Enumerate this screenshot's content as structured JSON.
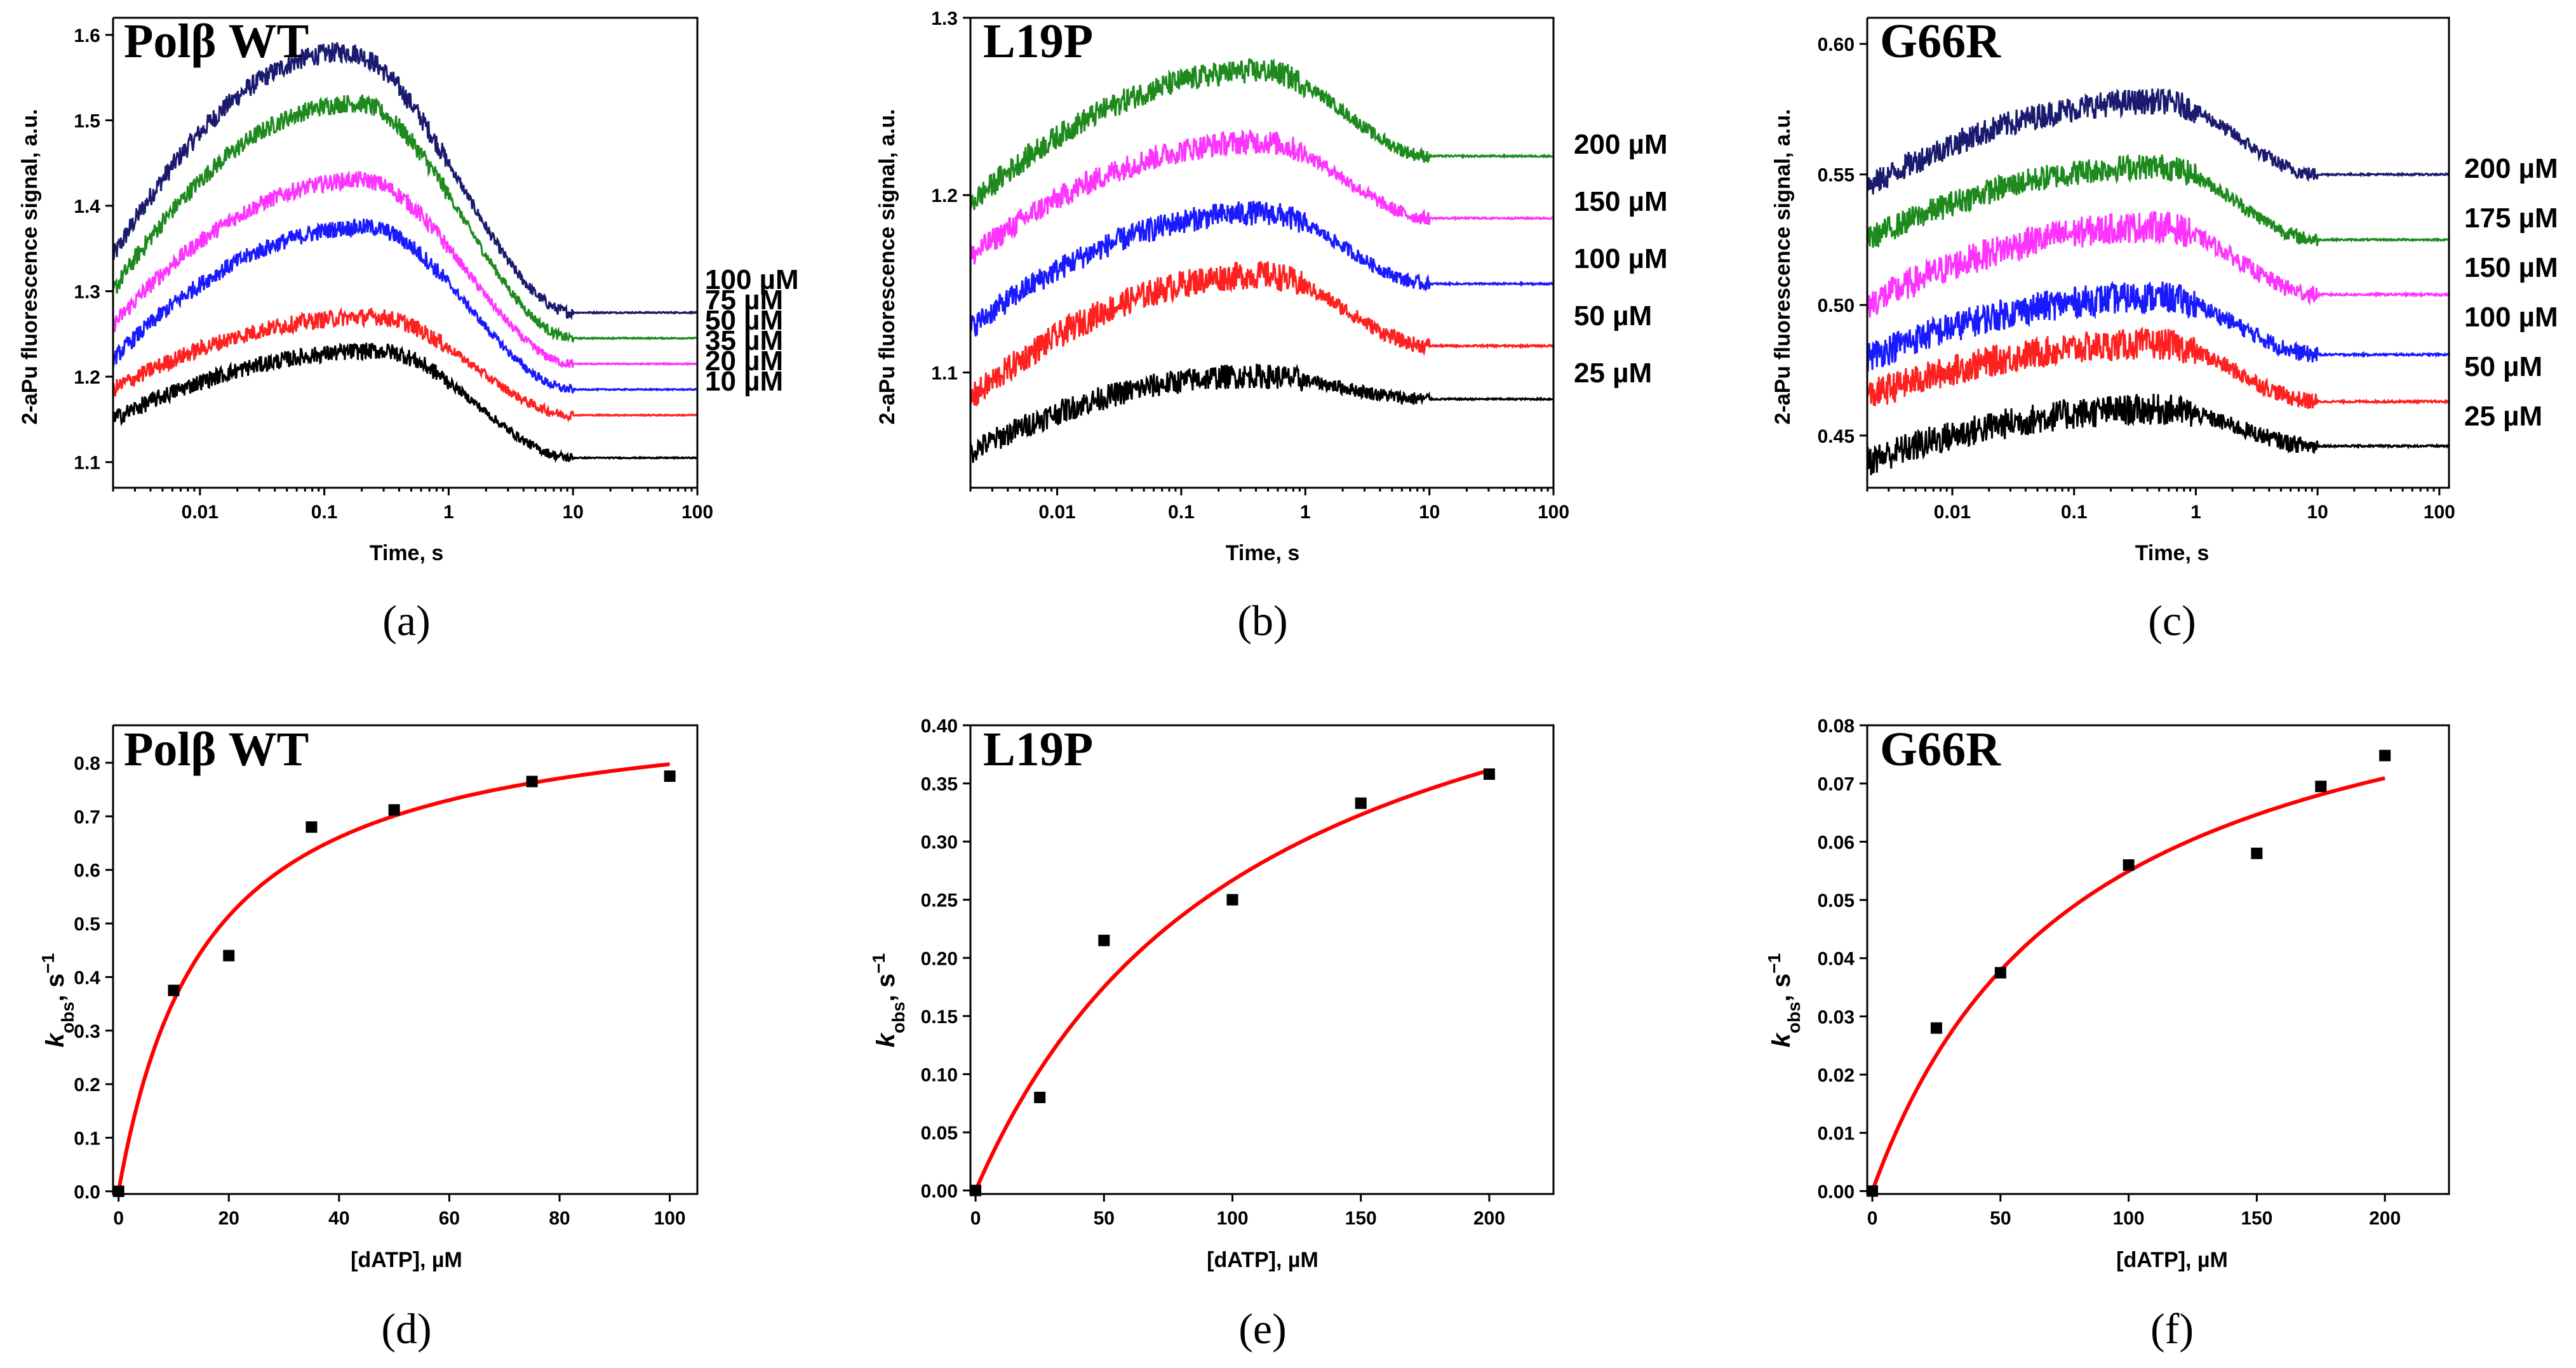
{
  "chart_data": [
    {
      "id": "a",
      "type": "line",
      "caption": "(a)",
      "title": "Polβ WT",
      "xlabel": "Time, s",
      "ylabel": "2-aPu fluorescence signal, a.u.",
      "x_scale": "log",
      "xlim": [
        0.002,
        100
      ],
      "ylim": [
        1.07,
        1.62
      ],
      "x_ticks": [
        0.01,
        0.1,
        1,
        10,
        100
      ],
      "x_tick_labels": [
        "0.01",
        "0.1",
        "1",
        "10",
        "100"
      ],
      "y_ticks": [
        1.1,
        1.2,
        1.3,
        1.4,
        1.5,
        1.6
      ],
      "y_tick_labels": [
        "1.1",
        "1.2",
        "1.3",
        "1.4",
        "1.5",
        "1.6"
      ],
      "series": [
        {
          "name": "100 µM",
          "color": "#1a1a6e",
          "start": 1.34,
          "peak": 1.58,
          "peak_time": 0.15,
          "end": 1.275,
          "noise": 0.012
        },
        {
          "name": "75 µM",
          "color": "#1e8a1e",
          "start": 1.3,
          "peak": 1.52,
          "peak_time": 0.18,
          "end": 1.245,
          "noise": 0.011
        },
        {
          "name": "50 µM",
          "color": "#ff33ff",
          "start": 1.26,
          "peak": 1.43,
          "peak_time": 0.2,
          "end": 1.215,
          "noise": 0.01
        },
        {
          "name": "35 µM",
          "color": "#1a1aff",
          "start": 1.22,
          "peak": 1.375,
          "peak_time": 0.22,
          "end": 1.185,
          "noise": 0.01
        },
        {
          "name": "20 µM",
          "color": "#ff2020",
          "start": 1.185,
          "peak": 1.27,
          "peak_time": 0.25,
          "end": 1.155,
          "noise": 0.01
        },
        {
          "name": "10 µM",
          "color": "#000000",
          "start": 1.15,
          "peak": 1.23,
          "peak_time": 0.28,
          "end": 1.105,
          "noise": 0.01
        }
      ]
    },
    {
      "id": "b",
      "type": "line",
      "caption": "(b)",
      "title": "L19P",
      "xlabel": "Time, s",
      "ylabel": "2-aPu fluorescence signal, a.u.",
      "x_scale": "log",
      "xlim": [
        0.002,
        100
      ],
      "ylim": [
        1.035,
        1.3
      ],
      "x_ticks": [
        0.01,
        0.1,
        1,
        10,
        100
      ],
      "x_tick_labels": [
        "0.01",
        "0.1",
        "1",
        "10",
        "100"
      ],
      "y_ticks": [
        1.1,
        1.2,
        1.3
      ],
      "y_tick_labels": [
        "1.1",
        "1.2",
        "1.3"
      ],
      "series": [
        {
          "name": "200 µM",
          "color": "#1e8a1e",
          "start": 1.195,
          "peak": 1.27,
          "peak_time": 0.45,
          "end": 1.222,
          "noise": 0.007
        },
        {
          "name": "150 µM",
          "color": "#ff33ff",
          "start": 1.165,
          "peak": 1.23,
          "peak_time": 0.45,
          "end": 1.187,
          "noise": 0.007
        },
        {
          "name": "100 µM",
          "color": "#1a1aff",
          "start": 1.125,
          "peak": 1.19,
          "peak_time": 0.45,
          "end": 1.15,
          "noise": 0.007
        },
        {
          "name": "50 µM",
          "color": "#ff2020",
          "start": 1.085,
          "peak": 1.155,
          "peak_time": 0.45,
          "end": 1.115,
          "noise": 0.008
        },
        {
          "name": "25 µM",
          "color": "#000000",
          "start": 1.055,
          "peak": 1.098,
          "peak_time": 0.4,
          "end": 1.085,
          "noise": 0.007
        }
      ]
    },
    {
      "id": "c",
      "type": "line",
      "caption": "(c)",
      "title": "G66R",
      "xlabel": "Time, s",
      "ylabel": "2-aPu fluorescence signal, a.u.",
      "x_scale": "log",
      "xlim": [
        0.002,
        120
      ],
      "ylim": [
        0.43,
        0.61
      ],
      "x_ticks": [
        0.01,
        0.1,
        1,
        10,
        100
      ],
      "x_tick_labels": [
        "0.01",
        "0.1",
        "1",
        "10",
        "100"
      ],
      "y_ticks": [
        0.45,
        0.5,
        0.55,
        0.6
      ],
      "y_tick_labels": [
        "0.45",
        "0.50",
        "0.55",
        "0.60"
      ],
      "series": [
        {
          "name": "200 µM",
          "color": "#1a1a6e",
          "start": 0.545,
          "peak": 0.578,
          "peak_time": 0.5,
          "end": 0.55,
          "noise": 0.005
        },
        {
          "name": "175 µM",
          "color": "#1e8a1e",
          "start": 0.525,
          "peak": 0.553,
          "peak_time": 0.5,
          "end": 0.525,
          "noise": 0.005
        },
        {
          "name": "150 µM",
          "color": "#ff33ff",
          "start": 0.5,
          "peak": 0.53,
          "peak_time": 0.5,
          "end": 0.504,
          "noise": 0.006
        },
        {
          "name": "100 µM",
          "color": "#1a1aff",
          "start": 0.48,
          "peak": 0.503,
          "peak_time": 0.5,
          "end": 0.481,
          "noise": 0.006
        },
        {
          "name": "50 µM",
          "color": "#ff2020",
          "start": 0.465,
          "peak": 0.485,
          "peak_time": 0.5,
          "end": 0.463,
          "noise": 0.006
        },
        {
          "name": "25 µM",
          "color": "#000000",
          "start": 0.44,
          "peak": 0.46,
          "peak_time": 0.5,
          "end": 0.446,
          "noise": 0.006
        }
      ]
    },
    {
      "id": "d",
      "type": "scatter",
      "caption": "(d)",
      "title": "Polβ WT",
      "xlabel": "[dATP], µM",
      "ylabel_main": "k",
      "ylabel_sub": "obs",
      "ylabel_unit": ", s",
      "ylabel_sup": "−1",
      "xlim": [
        -1,
        105
      ],
      "ylim": [
        -0.005,
        0.87
      ],
      "x_ticks": [
        0,
        20,
        40,
        60,
        80,
        100
      ],
      "x_tick_labels": [
        "0",
        "20",
        "40",
        "60",
        "80",
        "100"
      ],
      "y_ticks": [
        0,
        0.1,
        0.2,
        0.3,
        0.4,
        0.5,
        0.6,
        0.7,
        0.8
      ],
      "y_tick_labels": [
        "0.0",
        "0.1",
        "0.2",
        "0.3",
        "0.4",
        "0.5",
        "0.6",
        "0.7",
        "0.8"
      ],
      "points_x": [
        0,
        10,
        20,
        35,
        50,
        75,
        100
      ],
      "points_y": [
        0,
        0.375,
        0.44,
        0.68,
        0.712,
        0.765,
        0.775
      ],
      "fit": {
        "color": "#ff0000",
        "kmax": 0.925,
        "kd": 16.0,
        "x_max": 100
      }
    },
    {
      "id": "e",
      "type": "scatter",
      "caption": "(e)",
      "title": "L19P",
      "xlabel": "[dATP], µM",
      "ylabel_main": "k",
      "ylabel_sub": "obs",
      "ylabel_unit": ", s",
      "ylabel_sup": "−1",
      "xlim": [
        -2,
        225
      ],
      "ylim": [
        -0.003,
        0.4
      ],
      "x_ticks": [
        0,
        50,
        100,
        150,
        200
      ],
      "x_tick_labels": [
        "0",
        "50",
        "100",
        "150",
        "200"
      ],
      "y_ticks": [
        0,
        0.05,
        0.1,
        0.15,
        0.2,
        0.25,
        0.3,
        0.35,
        0.4
      ],
      "y_tick_labels": [
        "0.00",
        "0.05",
        "0.10",
        "0.15",
        "0.20",
        "0.25",
        "0.30",
        "0.35",
        "0.40"
      ],
      "points_x": [
        0,
        25,
        50,
        100,
        150,
        200
      ],
      "points_y": [
        0,
        0.08,
        0.215,
        0.25,
        0.333,
        0.358
      ],
      "fit": {
        "color": "#ff0000",
        "kmax": 0.56,
        "kd": 110.0,
        "x_max": 200
      }
    },
    {
      "id": "f",
      "type": "scatter",
      "caption": "(f)",
      "title": "G66R",
      "xlabel": "[dATP], µM",
      "ylabel_main": "k",
      "ylabel_sub": "obs",
      "ylabel_unit": ", s",
      "ylabel_sup": "−1",
      "xlim": [
        -2,
        225
      ],
      "ylim": [
        -0.0005,
        0.08
      ],
      "x_ticks": [
        0,
        50,
        100,
        150,
        200
      ],
      "x_tick_labels": [
        "0",
        "50",
        "100",
        "150",
        "200"
      ],
      "y_ticks": [
        0,
        0.01,
        0.02,
        0.03,
        0.04,
        0.05,
        0.06,
        0.07,
        0.08
      ],
      "y_tick_labels": [
        "0.00",
        "0.01",
        "0.02",
        "0.03",
        "0.04",
        "0.05",
        "0.06",
        "0.07",
        "0.08"
      ],
      "points_x": [
        0,
        25,
        50,
        100,
        150,
        175,
        200
      ],
      "points_y": [
        0,
        0.028,
        0.0375,
        0.056,
        0.058,
        0.0695,
        0.0748
      ],
      "fit": {
        "color": "#ff0000",
        "kmax": 0.1,
        "kd": 82.0,
        "x_max": 200
      }
    }
  ]
}
